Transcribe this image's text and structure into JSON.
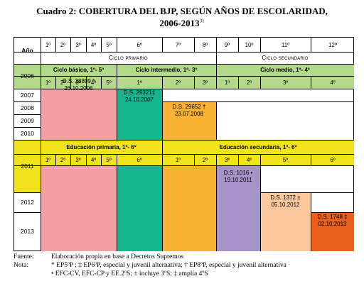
{
  "title": {
    "line1": "Cuadro 2: COBERTURA DEL BJP, SEGÚN AÑOS DE ESCOLARIDAD,",
    "line2": "2006-2013",
    "footnote_ref": "31"
  },
  "header": {
    "year_label": "Año",
    "grades_top": [
      "1º",
      "2º",
      "3º",
      "4º",
      "5º",
      "6º",
      "7º",
      "8º",
      "9º",
      "10º",
      "11º",
      "12º"
    ],
    "ciclo_primario": "Ciclo primario",
    "ciclo_secundario": "Ciclo secundario"
  },
  "band_2006": {
    "year": "2006",
    "groups": [
      "Ciclo básico, 1º- 5º",
      "Ciclo intermedio, 1º- 3º",
      "Ciclo medio, 1º- 4º"
    ],
    "grades": [
      "1º",
      "2º",
      "3º",
      "4º",
      "5º",
      "1º",
      "2º",
      "3º",
      "1º",
      "2º",
      "3º",
      "4º"
    ]
  },
  "years": [
    "2007",
    "2008",
    "2009",
    "2010",
    "2011",
    "2012",
    "2013"
  ],
  "band_2011": {
    "groups": [
      "Educación primaria, 1º- 6º",
      "Educación secundaria, 1º- 6º"
    ],
    "grades": [
      "1º",
      "2º",
      "3º",
      "4º",
      "5º",
      "6º",
      "1º",
      "2º",
      "3º",
      "4º",
      "5º",
      "6º"
    ]
  },
  "decrees": [
    {
      "name": "D.S. 28899 *",
      "date": "26.10.2006",
      "color": "#f2a0a6"
    },
    {
      "name": "D.S. 29321‡",
      "date": "24.10.2007",
      "color": "#15b590"
    },
    {
      "name": "D.S. 29652 †",
      "date": "23.07.2008",
      "color": "#f9b233"
    },
    {
      "name": "D.S. 1016 •",
      "date": "19.10.2011",
      "color": "#a693c7"
    },
    {
      "name": "D.S. 1372 ±",
      "date": "05.10.2012",
      "color": "#fbc79f"
    },
    {
      "name": "D.S. 1748 ‡",
      "date": "02.10.2013",
      "color": "#e95f1c"
    }
  ],
  "band_colors": {
    "green": "#b5d98a",
    "yellow": "#f2e41c"
  },
  "footer": {
    "fuente_label": "Fuente:",
    "fuente_text": "Elaboración propia en base a Decretos Supremos",
    "nota_label": "Nota:",
    "nota_line1": "* EP5ºP ; ‡ EP6ºP, especial y juvenil alternativa; † EP8ºP, especial y juvenil alternativa",
    "nota_line2": "• EFC-CV, EFC-CP y EE 2ºS; ± incluye 3ºS; ‡ amplía 4ºS"
  }
}
